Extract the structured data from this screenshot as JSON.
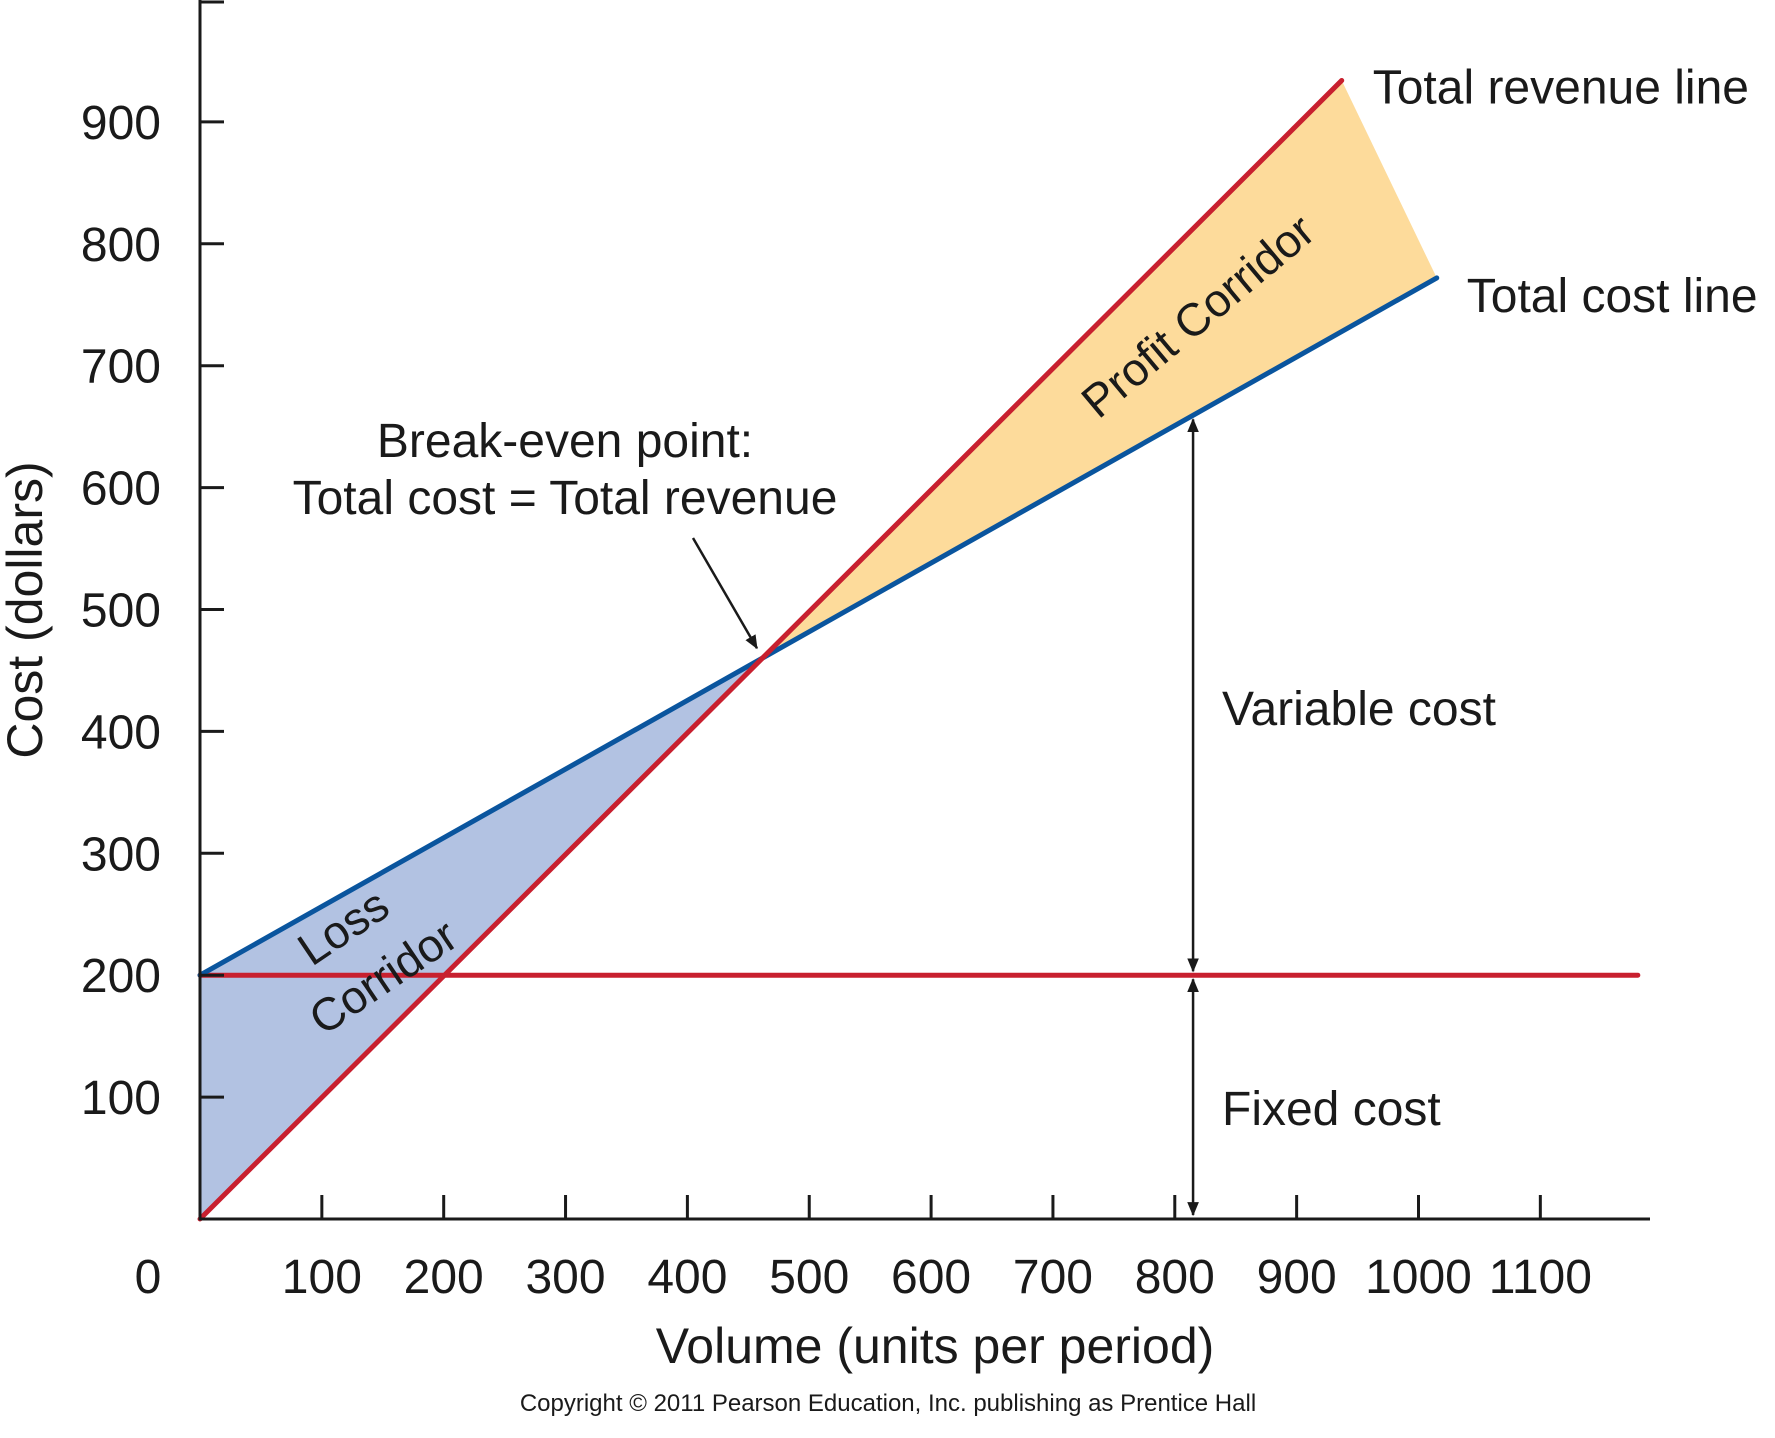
{
  "chart_data": {
    "type": "line",
    "xlabel": "Volume (units per period)",
    "ylabel": "Cost (dollars)",
    "xlim": [
      0,
      1190
    ],
    "ylim": [
      0,
      1000
    ],
    "x_ticks": [
      0,
      100,
      200,
      300,
      400,
      500,
      600,
      700,
      800,
      900,
      1000,
      1100
    ],
    "x_tick_labels": [
      "0",
      "100",
      "200",
      "300",
      "400",
      "500",
      "600",
      "700",
      "800",
      "900",
      "1000",
      "1100"
    ],
    "y_ticks": [
      100,
      200,
      300,
      400,
      500,
      600,
      700,
      800,
      900
    ],
    "y_tick_labels": [
      "100",
      "200",
      "300",
      "400",
      "500",
      "600",
      "700",
      "800",
      "900"
    ],
    "series": [
      {
        "name": "Total revenue line",
        "x": [
          0,
          937
        ],
        "y": [
          0,
          934
        ],
        "color": "#c8202f"
      },
      {
        "name": "Total cost line",
        "x": [
          0,
          1015
        ],
        "y": [
          200,
          772
        ],
        "color": "#0a559e"
      },
      {
        "x": [
          0,
          1180
        ],
        "y": [
          200,
          200
        ],
        "color": "#c8202f"
      }
    ],
    "regions": [
      {
        "label": "Loss Corridor",
        "color": "#b2c2e2"
      },
      {
        "label": "Profit Corridor",
        "color": "#fddb9b"
      }
    ],
    "annotations": {
      "break_even": [
        "Break-even point:",
        "Total cost = Total revenue"
      ],
      "break_even_point": [
        462,
        460
      ],
      "variable_cost": "Variable cost",
      "fixed_cost": "Fixed cost",
      "loss_corridor": [
        "Loss",
        "Corridor"
      ],
      "profit_corridor": "Profit Corridor",
      "measure_x": 815
    },
    "grid": false,
    "legend": "none"
  },
  "footer": {
    "copyright": "Copyright © 2011 Pearson Education, Inc. publishing as Prentice Hall"
  }
}
